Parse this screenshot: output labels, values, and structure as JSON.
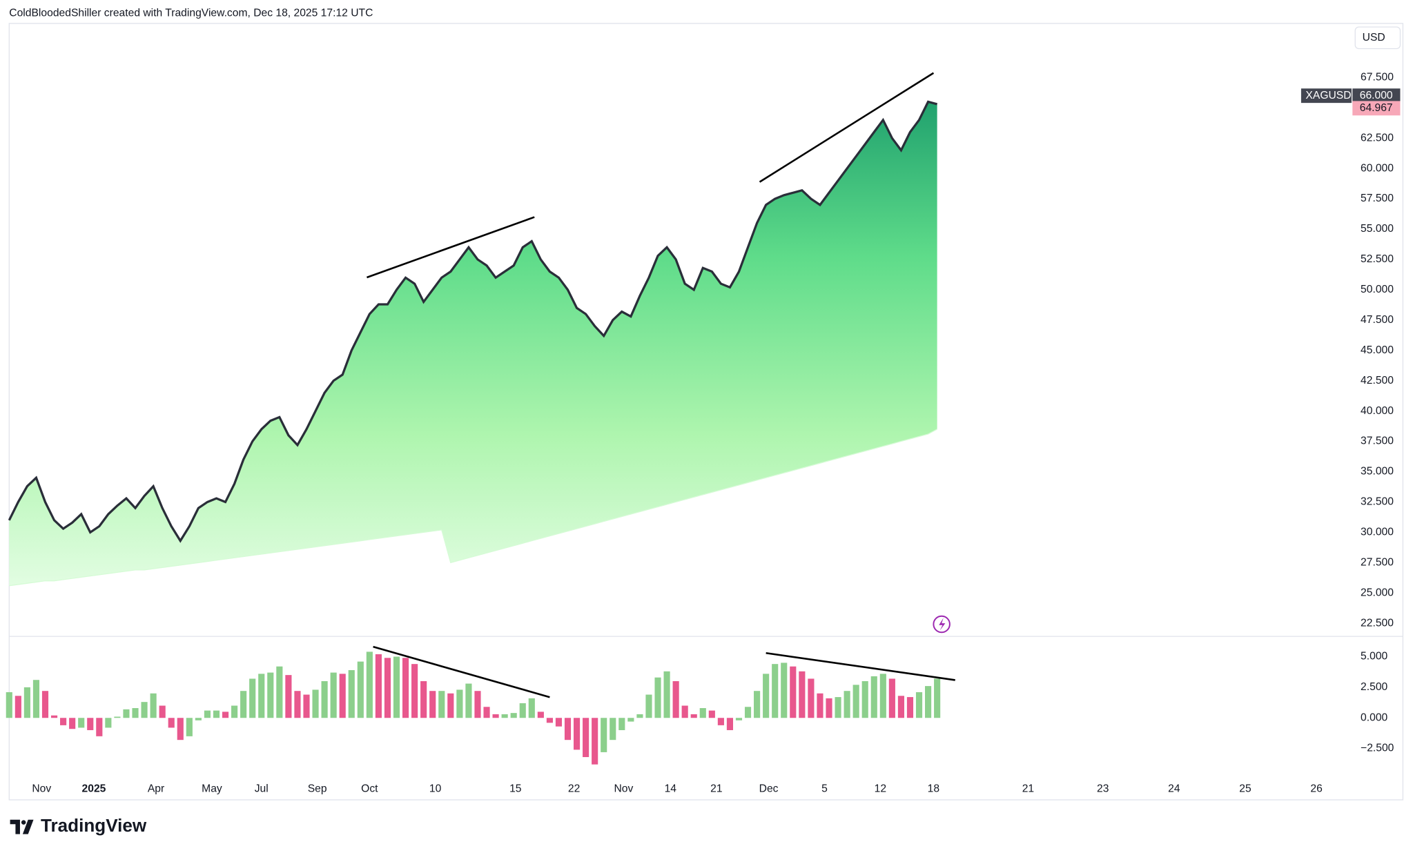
{
  "header": "ColdBloodedShiller created with TradingView.com, Dec 18, 2025 17:12 UTC",
  "logo": "TradingView",
  "chart_data": [
    {
      "type": "ribbon",
      "currency": "USD",
      "ylim": [
        21.46,
        71.96
      ],
      "yticks": [
        {
          "value": 22.5,
          "label": "22.500"
        },
        {
          "value": 25,
          "label": "25.000"
        },
        {
          "value": 27.5,
          "label": "27.500"
        },
        {
          "value": 30,
          "label": "30.000"
        },
        {
          "value": 32.5,
          "label": "32.500"
        },
        {
          "value": 35,
          "label": "35.000"
        },
        {
          "value": 37.5,
          "label": "37.500"
        },
        {
          "value": 40,
          "label": "40.000"
        },
        {
          "value": 42.5,
          "label": "42.500"
        },
        {
          "value": 45,
          "label": "45.000"
        },
        {
          "value": 47.5,
          "label": "47.500"
        },
        {
          "value": 50,
          "label": "50.000"
        },
        {
          "value": 52.5,
          "label": "52.500"
        },
        {
          "value": 55,
          "label": "55.000"
        },
        {
          "value": 57.5,
          "label": "57.500"
        },
        {
          "value": 60,
          "label": "60.000"
        },
        {
          "value": 62.5,
          "label": "62.500"
        },
        {
          "value": 65,
          "label": "65.000"
        },
        {
          "value": 67.5,
          "label": "67.500"
        }
      ],
      "xlim": [
        0,
        149
      ],
      "series": [
        {
          "name": "XAGUSD",
          "color": "#2a2e39",
          "values": [
            31.0,
            32.5,
            33.8,
            34.5,
            32.5,
            31,
            30.3,
            30.8,
            31.5,
            30,
            30.5,
            31.5,
            32.2,
            32.8,
            32,
            33,
            33.8,
            32,
            30.5,
            29.3,
            30.5,
            32,
            32.5,
            32.8,
            32.5,
            34,
            36,
            37.5,
            38.5,
            39.2,
            39.5,
            38,
            37.2,
            38.5,
            40,
            41.5,
            42.5,
            43,
            45,
            46.5,
            48,
            48.8,
            48.8,
            50,
            51,
            50.5,
            49,
            50,
            51,
            51.5,
            52.5,
            53.5,
            52.5,
            52,
            51,
            51.5,
            52,
            53.5,
            54,
            52.5,
            51.5,
            51,
            50,
            48.5,
            48,
            47,
            46.2,
            47.5,
            48.2,
            47.8,
            49.5,
            51,
            52.8,
            53.5,
            52.5,
            50.5,
            50,
            51.8,
            51.5,
            50.5,
            50.2,
            51.5,
            53.5,
            55.5,
            57,
            57.5,
            57.8,
            58,
            58.2,
            57.5,
            57,
            58,
            59,
            60,
            61,
            62,
            63,
            64,
            62.5,
            61.5,
            63,
            64,
            65.5,
            65.3
          ]
        },
        {
          "color": "#d6fbd6",
          "values": [
            25.6,
            25.7,
            25.8,
            25.9,
            26.0,
            26.0,
            26.1,
            26.2,
            26.3,
            26.4,
            26.5,
            26.6,
            26.7,
            26.8,
            26.9,
            26.9,
            27.0,
            27.1,
            27.2,
            27.3,
            27.4,
            27.5,
            27.6,
            27.7,
            27.8,
            27.9,
            28.0,
            28.1,
            28.2,
            28.3,
            28.4,
            28.5,
            28.6,
            28.7,
            28.8,
            28.9,
            29.0,
            29.1,
            29.2,
            29.3,
            29.4,
            29.5,
            29.6,
            29.7,
            29.8,
            29.9,
            30.0,
            30.1,
            30.2,
            27.5,
            27.7,
            27.9,
            28.1,
            28.3,
            28.5,
            28.7,
            28.9,
            29.1,
            29.3,
            29.5,
            29.7,
            29.9,
            30.1,
            30.3,
            30.5,
            30.7,
            30.9,
            31.1,
            31.3,
            31.5,
            31.7,
            31.9,
            32.1,
            32.3,
            32.5,
            32.7,
            32.9,
            33.1,
            33.3,
            33.5,
            33.7,
            33.9,
            34.1,
            34.3,
            34.5,
            34.7,
            34.9,
            35.1,
            35.3,
            35.5,
            35.7,
            35.9,
            36.1,
            36.3,
            36.5,
            36.7,
            36.9,
            37.1,
            37.3,
            37.5,
            37.7,
            37.9,
            38.1,
            38.5
          ]
        }
      ],
      "price_labels": [
        {
          "value": 66.0,
          "label": "66.000",
          "color": "#434651"
        },
        {
          "value": 64.967,
          "label": "64.967",
          "color": "#f7a8b8"
        }
      ]
    },
    {
      "type": "bar",
      "ylim": [
        -4.78,
        6.62
      ],
      "yticks": [
        {
          "value": 5,
          "label": "5.000"
        },
        {
          "value": 2.5,
          "label": "2.500"
        },
        {
          "value": 0,
          "label": "0.000"
        },
        {
          "value": -2.5,
          "label": "−2.500"
        }
      ],
      "xlim": [
        0,
        149
      ],
      "xticks": [
        {
          "value": 3.6,
          "label": "Nov"
        },
        {
          "value": 9.4,
          "label": "2025"
        },
        {
          "value": 16.3,
          "label": "Apr"
        },
        {
          "value": 22.5,
          "label": "May"
        },
        {
          "value": 28,
          "label": "Jul"
        },
        {
          "value": 34.2,
          "label": "Sep"
        },
        {
          "value": 40,
          "label": "Oct"
        },
        {
          "value": 47.3,
          "label": "10"
        },
        {
          "value": 56.2,
          "label": "15"
        },
        {
          "value": 62.7,
          "label": "22"
        },
        {
          "value": 68.2,
          "label": "Nov"
        },
        {
          "value": 73.4,
          "label": "14"
        },
        {
          "value": 78.5,
          "label": "21"
        },
        {
          "value": 84.3,
          "label": "Dec"
        },
        {
          "value": 90.5,
          "label": "5"
        },
        {
          "value": 96.7,
          "label": "12"
        },
        {
          "value": 102.6,
          "label": "18"
        },
        {
          "value": 113.1,
          "label": "21"
        },
        {
          "value": 121.4,
          "label": "23"
        },
        {
          "value": 129.3,
          "label": "24"
        },
        {
          "value": 137.2,
          "label": "25"
        },
        {
          "value": 145.1,
          "label": "26"
        }
      ],
      "up_color": "#8ccf8c",
      "down_color": "#e8578d",
      "values": [
        2.1,
        1.8,
        2.5,
        3.1,
        2.2,
        0.2,
        -0.6,
        -0.9,
        -0.8,
        -1.0,
        -1.5,
        -0.8,
        0.1,
        0.7,
        0.8,
        1.3,
        2.0,
        1.0,
        -0.8,
        -1.8,
        -1.5,
        -0.2,
        0.6,
        0.6,
        0.5,
        1.0,
        2.2,
        3.2,
        3.6,
        3.7,
        4.2,
        3.5,
        2.2,
        1.9,
        2.3,
        3.0,
        3.7,
        3.6,
        3.9,
        4.6,
        5.4,
        5.2,
        4.9,
        5.0,
        4.9,
        4.4,
        3.0,
        2.2,
        2.2,
        2.0,
        2.3,
        2.8,
        2.2,
        0.9,
        0.3,
        0.3,
        0.4,
        1.2,
        1.6,
        0.5,
        -0.4,
        -0.7,
        -1.8,
        -2.6,
        -3.2,
        -3.8,
        -2.8,
        -1.8,
        -1.0,
        -0.3,
        0.3,
        1.9,
        3.3,
        3.8,
        3.0,
        1.0,
        0.3,
        0.8,
        0.6,
        -0.6,
        -1.0,
        -0.2,
        0.9,
        2.2,
        3.6,
        4.4,
        4.5,
        4.2,
        3.8,
        3.2,
        2.0,
        1.6,
        1.7,
        2.2,
        2.7,
        3.0,
        3.4,
        3.6,
        3.2,
        1.8,
        1.7,
        2.1,
        2.6,
        3.2
      ]
    }
  ]
}
